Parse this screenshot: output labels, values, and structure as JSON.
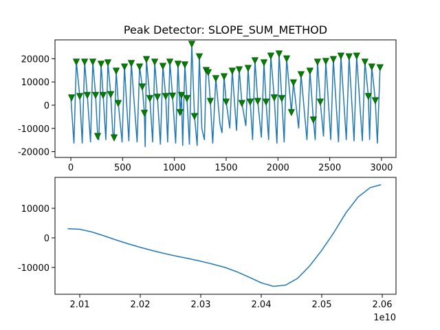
{
  "chart_data": [
    {
      "type": "line",
      "title": "Peak Detector: SLOPE_SUM_METHOD",
      "xlim": [
        -153,
        3140
      ],
      "ylim": [
        -22500,
        28100
      ],
      "xticks": [
        0,
        500,
        1000,
        1500,
        2000,
        2500,
        3000
      ],
      "yticks": [
        -20000,
        -10000,
        0,
        10000,
        20000
      ],
      "series": [
        {
          "color": "#1f77b4",
          "marker": "none",
          "x": [
            0,
            30,
            53,
            86,
            110,
            133,
            159,
            190,
            212,
            239,
            259,
            270,
            292,
            312,
            338,
            358,
            385,
            405,
            418,
            438,
            458,
            495,
            518,
            560,
            584,
            640,
            664,
            690,
            710,
            718,
            730,
            763,
            790,
            810,
            836,
            865,
            889,
            916,
            935,
            956,
            982,
            1012,
            1035,
            1055,
            1068,
            1080,
            1101,
            1121,
            1145,
            1168,
            1194,
            1220,
            1241,
            1265,
            1290,
            1307,
            1327,
            1347,
            1370,
            1400,
            1440,
            1460,
            1480,
            1500,
            1535,
            1559,
            1600,
            1626,
            1652,
            1690,
            1712,
            1732,
            1755,
            1778,
            1805,
            1840,
            1865,
            1885,
            1910,
            1931,
            1964,
            1990,
            2011,
            2037,
            2060,
            2084,
            2130,
            2150,
            2200,
            2223,
            2280,
            2309,
            2342,
            2360,
            2382,
            2409,
            2440,
            2462,
            2510,
            2535,
            2585,
            2608,
            2660,
            2687,
            2735,
            2760,
            2815,
            2840,
            2873,
            2885,
            2906,
            2940,
            2960,
            2986,
            3000
          ],
          "y": [
            3300,
            -16500,
            18700,
            3900,
            -16500,
            18700,
            4400,
            -16000,
            18700,
            4400,
            -13300,
            -15000,
            17800,
            4400,
            -15000,
            18400,
            4700,
            -12000,
            -13900,
            14800,
            900,
            -16000,
            16600,
            -15500,
            18100,
            -16000,
            16600,
            8000,
            -3300,
            -18000,
            19800,
            3000,
            -16000,
            18700,
            3600,
            -17000,
            16900,
            3900,
            -16000,
            18700,
            4100,
            -16500,
            17800,
            -3000,
            4400,
            -17500,
            17500,
            3000,
            -17000,
            26400,
            -4700,
            -17500,
            21000,
            -10000,
            -15000,
            15100,
            14200,
            1800,
            -16500,
            11600,
            -8000,
            -12000,
            12400,
            1500,
            -10000,
            14800,
            -11000,
            15400,
            900,
            -9000,
            16000,
            1500,
            -15000,
            19300,
            1800,
            -14000,
            18400,
            1500,
            -15000,
            21300,
            3300,
            -16500,
            22200,
            3000,
            -16000,
            20100,
            -3000,
            9800,
            -10000,
            13300,
            -15000,
            14800,
            -6200,
            -15000,
            18700,
            1500,
            -13500,
            19000,
            -15000,
            19800,
            -16000,
            21300,
            -15000,
            21000,
            -15500,
            21300,
            -15500,
            18700,
            3900,
            -15000,
            16600,
            2100,
            -16500,
            16300,
            16300
          ]
        },
        {
          "color": "#008000",
          "marker": "triangle-down",
          "x": [
            7,
            53,
            86,
            133,
            159,
            212,
            239,
            259,
            292,
            312,
            358,
            385,
            418,
            438,
            458,
            518,
            584,
            664,
            690,
            710,
            730,
            763,
            810,
            836,
            889,
            916,
            956,
            982,
            1035,
            1055,
            1068,
            1101,
            1121,
            1168,
            1194,
            1241,
            1307,
            1327,
            1347,
            1400,
            1480,
            1500,
            1559,
            1626,
            1652,
            1712,
            1732,
            1778,
            1805,
            1865,
            1885,
            1931,
            1964,
            2011,
            2037,
            2084,
            2130,
            2150,
            2223,
            2309,
            2342,
            2382,
            2409,
            2462,
            2535,
            2608,
            2687,
            2760,
            2840,
            2873,
            2906,
            2940,
            2986
          ],
          "y": [
            3300,
            18700,
            3900,
            18700,
            4400,
            18700,
            4400,
            -13300,
            17800,
            4400,
            18400,
            4700,
            -13900,
            14800,
            900,
            16600,
            18100,
            16600,
            8000,
            -3300,
            19800,
            3000,
            18700,
            3600,
            16900,
            3900,
            18700,
            4100,
            17800,
            -3000,
            4400,
            17500,
            3000,
            26400,
            -4700,
            21000,
            15100,
            14200,
            1800,
            11600,
            12400,
            1500,
            14800,
            15400,
            900,
            16000,
            1500,
            19300,
            1800,
            18400,
            1500,
            21300,
            3300,
            22200,
            3000,
            20100,
            -3000,
            9800,
            13300,
            14800,
            -6200,
            18700,
            1500,
            19000,
            19800,
            21300,
            21000,
            21300,
            18700,
            3900,
            16600,
            2100,
            16300
          ]
        }
      ]
    },
    {
      "type": "line",
      "x_offset_label": "1e10",
      "xlim": [
        2.00591,
        2.06227
      ],
      "ylim": [
        -19070,
        20465
      ],
      "xticks": [
        2.01,
        2.02,
        2.03,
        2.04,
        2.05,
        2.06
      ],
      "yticks": [
        -10000,
        0,
        10000
      ],
      "series": [
        {
          "color": "#1f77b4",
          "marker": "none",
          "x": [
            2.008,
            2.01,
            2.012,
            2.014,
            2.016,
            2.018,
            2.02,
            2.022,
            2.024,
            2.026,
            2.028,
            2.03,
            2.032,
            2.034,
            2.036,
            2.038,
            2.04,
            2.042,
            2.044,
            2.046,
            2.048,
            2.05,
            2.052,
            2.054,
            2.056,
            2.058,
            2.0598
          ],
          "y": [
            3100,
            2900,
            2000,
            700,
            -700,
            -2000,
            -3200,
            -4300,
            -5300,
            -6200,
            -7000,
            -7900,
            -8900,
            -10000,
            -11500,
            -13300,
            -15200,
            -16400,
            -16000,
            -13700,
            -9500,
            -4200,
            1800,
            8500,
            13800,
            17000,
            18000
          ]
        }
      ]
    }
  ]
}
